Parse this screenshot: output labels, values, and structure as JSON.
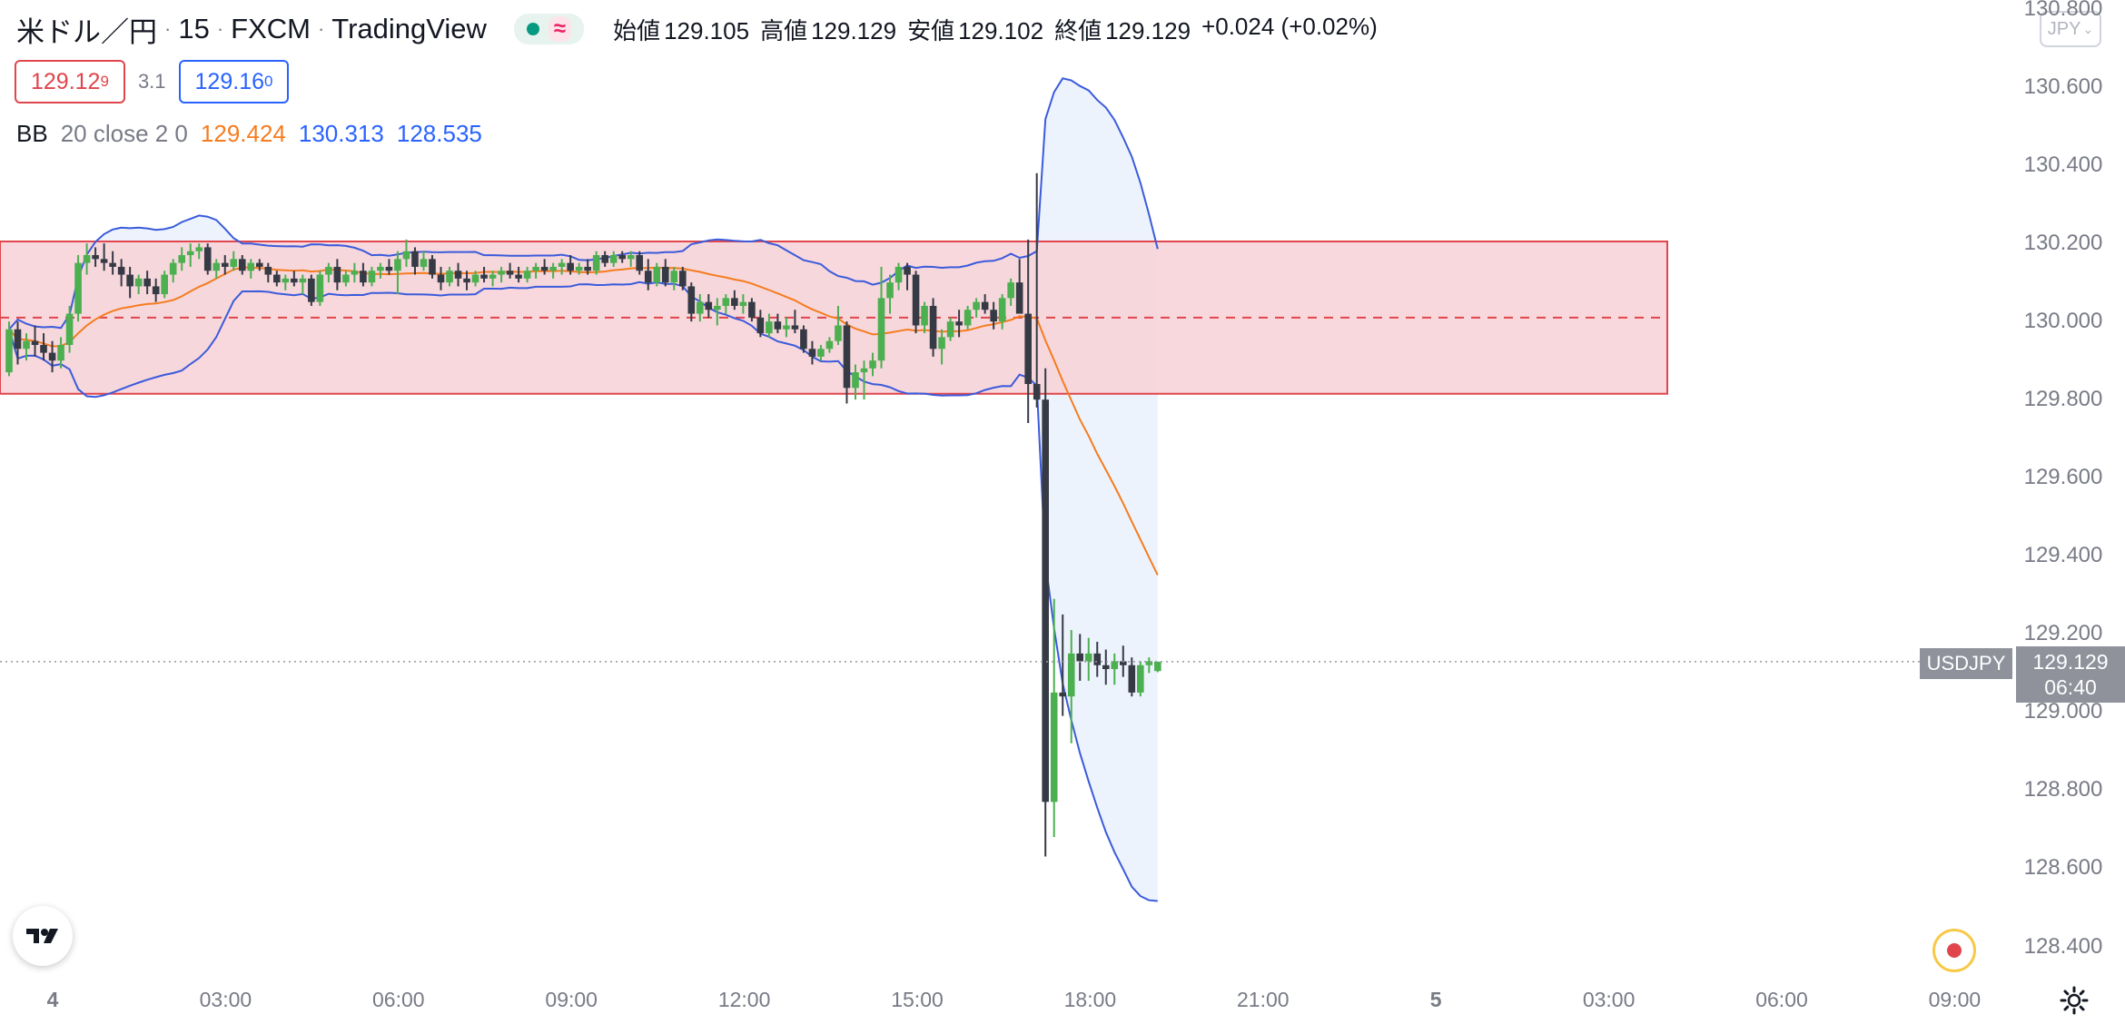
{
  "header": {
    "symbol": "米ドル／円",
    "interval": "15",
    "broker": "FXCM",
    "platform": "TradingView",
    "approx_glyph": "≈",
    "ohlc": {
      "open_label": "始値",
      "open": "129.105",
      "high_label": "高値",
      "high": "129.129",
      "low_label": "安値",
      "low": "129.102",
      "close_label": "終値",
      "close": "129.129",
      "change": "+0.024 (+0.02%)"
    }
  },
  "trade": {
    "sell_main": "129.12",
    "sell_sup": "9",
    "spread": "3.1",
    "buy_main": "129.16",
    "buy_sup": "0"
  },
  "indicator": {
    "label": "BB",
    "params": "20 close 2 0",
    "basis": "129.424",
    "upper": "130.313",
    "lower": "128.535"
  },
  "currency_button": "JPY",
  "price_axis": {
    "labels": [
      "130.800",
      "130.600",
      "130.400",
      "130.200",
      "130.000",
      "129.800",
      "129.600",
      "129.400",
      "129.200",
      "129.000",
      "128.800",
      "128.600",
      "128.400"
    ]
  },
  "time_axis": {
    "labels": [
      {
        "text": "4",
        "bold": true
      },
      {
        "text": "03:00",
        "bold": false
      },
      {
        "text": "06:00",
        "bold": false
      },
      {
        "text": "09:00",
        "bold": false
      },
      {
        "text": "12:00",
        "bold": false
      },
      {
        "text": "15:00",
        "bold": false
      },
      {
        "text": "18:00",
        "bold": false
      },
      {
        "text": "21:00",
        "bold": false
      },
      {
        "text": "5",
        "bold": true
      },
      {
        "text": "03:00",
        "bold": false
      },
      {
        "text": "06:00",
        "bold": false
      },
      {
        "text": "09:00",
        "bold": false
      }
    ]
  },
  "last_price": {
    "symbol": "USDJPY",
    "price": "129.129",
    "countdown": "06:40"
  },
  "colors": {
    "up": "#4caf50",
    "down": "#363a45",
    "band": "#3b5bdb",
    "basis": "#f57c1f",
    "rect_fill": "#f7d1d6",
    "rect_line": "#e0454b",
    "band_fill": "#e8f0fb"
  },
  "chart_data": {
    "type": "candlestick",
    "ylim": [
      128.4,
      130.8
    ],
    "grid": false,
    "rectangle": {
      "top": 130.205,
      "bottom": 129.815,
      "midline": 130.01
    },
    "candles_ohlc": [
      [
        129.87,
        130.0,
        129.86,
        129.98
      ],
      [
        129.98,
        130.0,
        129.89,
        129.93
      ],
      [
        129.93,
        129.97,
        129.9,
        129.95
      ],
      [
        129.95,
        129.99,
        129.91,
        129.94
      ],
      [
        129.94,
        129.97,
        129.9,
        129.92
      ],
      [
        129.92,
        129.95,
        129.87,
        129.9
      ],
      [
        129.9,
        129.96,
        129.88,
        129.94
      ],
      [
        129.94,
        130.04,
        129.92,
        130.02
      ],
      [
        130.02,
        130.17,
        130.0,
        130.15
      ],
      [
        130.15,
        130.2,
        130.12,
        130.17
      ],
      [
        130.17,
        130.19,
        130.14,
        130.16
      ],
      [
        130.16,
        130.2,
        130.13,
        130.15
      ],
      [
        130.15,
        130.18,
        130.12,
        130.14
      ],
      [
        130.14,
        130.16,
        130.09,
        130.12
      ],
      [
        130.12,
        130.14,
        130.06,
        130.09
      ],
      [
        130.09,
        130.12,
        130.07,
        130.11
      ],
      [
        130.11,
        130.13,
        130.07,
        130.09
      ],
      [
        130.09,
        130.11,
        130.05,
        130.07
      ],
      [
        130.07,
        130.13,
        130.06,
        130.12
      ],
      [
        130.12,
        130.16,
        130.1,
        130.15
      ],
      [
        130.15,
        130.19,
        130.13,
        130.17
      ],
      [
        130.17,
        130.2,
        130.14,
        130.18
      ],
      [
        130.18,
        130.2,
        130.16,
        130.19
      ],
      [
        130.19,
        130.2,
        130.12,
        130.13
      ],
      [
        130.13,
        130.16,
        130.11,
        130.15
      ],
      [
        130.15,
        130.17,
        130.12,
        130.14
      ],
      [
        130.14,
        130.18,
        130.13,
        130.16
      ],
      [
        130.16,
        130.17,
        130.12,
        130.13
      ],
      [
        130.13,
        130.16,
        130.11,
        130.15
      ],
      [
        130.15,
        130.16,
        130.13,
        130.14
      ],
      [
        130.14,
        130.15,
        130.1,
        130.12
      ],
      [
        130.12,
        130.13,
        130.09,
        130.1
      ],
      [
        130.1,
        130.12,
        130.08,
        130.11
      ],
      [
        130.11,
        130.13,
        130.09,
        130.1
      ],
      [
        130.1,
        130.12,
        130.07,
        130.11
      ],
      [
        130.11,
        130.12,
        130.04,
        130.05
      ],
      [
        130.05,
        130.13,
        130.04,
        130.12
      ],
      [
        130.12,
        130.15,
        130.1,
        130.14
      ],
      [
        130.14,
        130.16,
        130.08,
        130.1
      ],
      [
        130.1,
        130.13,
        130.09,
        130.12
      ],
      [
        130.12,
        130.15,
        130.1,
        130.13
      ],
      [
        130.13,
        130.15,
        130.09,
        130.1
      ],
      [
        130.1,
        130.14,
        130.09,
        130.13
      ],
      [
        130.13,
        130.15,
        130.11,
        130.14
      ],
      [
        130.14,
        130.16,
        130.12,
        130.13
      ],
      [
        130.13,
        130.18,
        130.07,
        130.16
      ],
      [
        130.16,
        130.21,
        130.14,
        130.18
      ],
      [
        130.18,
        130.19,
        130.12,
        130.14
      ],
      [
        130.14,
        130.18,
        130.13,
        130.16
      ],
      [
        130.16,
        130.17,
        130.11,
        130.12
      ],
      [
        130.12,
        130.14,
        130.08,
        130.1
      ],
      [
        130.1,
        130.14,
        130.09,
        130.13
      ],
      [
        130.13,
        130.15,
        130.09,
        130.11
      ],
      [
        130.11,
        130.13,
        130.08,
        130.1
      ],
      [
        130.1,
        130.13,
        130.09,
        130.12
      ],
      [
        130.12,
        130.14,
        130.1,
        130.11
      ],
      [
        130.11,
        130.13,
        130.09,
        130.12
      ],
      [
        130.12,
        130.14,
        130.1,
        130.13
      ],
      [
        130.13,
        130.15,
        130.11,
        130.12
      ],
      [
        130.12,
        130.14,
        130.1,
        130.11
      ],
      [
        130.11,
        130.14,
        130.1,
        130.13
      ],
      [
        130.13,
        130.15,
        130.11,
        130.14
      ],
      [
        130.14,
        130.16,
        130.12,
        130.13
      ],
      [
        130.13,
        130.15,
        130.11,
        130.14
      ],
      [
        130.14,
        130.16,
        130.12,
        130.15
      ],
      [
        130.15,
        130.17,
        130.12,
        130.13
      ],
      [
        130.13,
        130.15,
        130.12,
        130.14
      ],
      [
        130.14,
        130.16,
        130.12,
        130.13
      ],
      [
        130.13,
        130.18,
        130.12,
        130.17
      ],
      [
        130.17,
        130.18,
        130.14,
        130.15
      ],
      [
        130.15,
        130.18,
        130.14,
        130.17
      ],
      [
        130.17,
        130.18,
        130.15,
        130.16
      ],
      [
        130.16,
        130.18,
        130.14,
        130.17
      ],
      [
        130.17,
        130.18,
        130.12,
        130.13
      ],
      [
        130.13,
        130.16,
        130.08,
        130.1
      ],
      [
        130.1,
        130.15,
        130.09,
        130.14
      ],
      [
        130.14,
        130.16,
        130.09,
        130.1
      ],
      [
        130.1,
        130.14,
        130.08,
        130.13
      ],
      [
        130.13,
        130.14,
        130.08,
        130.09
      ],
      [
        130.09,
        130.1,
        130.0,
        130.02
      ],
      [
        130.02,
        130.07,
        130.0,
        130.05
      ],
      [
        130.05,
        130.07,
        130.01,
        130.03
      ],
      [
        130.03,
        130.06,
        129.99,
        130.04
      ],
      [
        130.04,
        130.07,
        130.02,
        130.06
      ],
      [
        130.06,
        130.08,
        130.03,
        130.04
      ],
      [
        130.04,
        130.07,
        130.02,
        130.05
      ],
      [
        130.05,
        130.06,
        130.0,
        130.01
      ],
      [
        130.01,
        130.03,
        129.96,
        129.97
      ],
      [
        129.97,
        130.02,
        129.96,
        130.0
      ],
      [
        130.0,
        130.02,
        129.97,
        129.98
      ],
      [
        129.98,
        130.01,
        129.96,
        129.99
      ],
      [
        129.99,
        130.03,
        129.97,
        129.98
      ],
      [
        129.98,
        129.99,
        129.92,
        129.93
      ],
      [
        129.93,
        129.95,
        129.89,
        129.91
      ],
      [
        129.91,
        129.94,
        129.9,
        129.93
      ],
      [
        129.93,
        129.96,
        129.92,
        129.95
      ],
      [
        129.95,
        130.04,
        129.94,
        129.99
      ],
      [
        129.99,
        130.0,
        129.79,
        129.83
      ],
      [
        129.83,
        129.89,
        129.8,
        129.87
      ],
      [
        129.87,
        129.9,
        129.8,
        129.88
      ],
      [
        129.88,
        129.92,
        129.86,
        129.9
      ],
      [
        129.9,
        130.14,
        129.88,
        130.06
      ],
      [
        130.06,
        130.12,
        130.02,
        130.1
      ],
      [
        130.1,
        130.15,
        130.08,
        130.14
      ],
      [
        130.14,
        130.15,
        130.08,
        130.12
      ],
      [
        130.12,
        130.13,
        129.97,
        129.99
      ],
      [
        129.99,
        130.05,
        129.97,
        130.04
      ],
      [
        130.04,
        130.06,
        129.91,
        129.93
      ],
      [
        129.93,
        129.98,
        129.89,
        129.96
      ],
      [
        129.96,
        130.01,
        129.95,
        130.0
      ],
      [
        130.0,
        130.03,
        129.96,
        129.99
      ],
      [
        129.99,
        130.04,
        129.98,
        130.03
      ],
      [
        130.03,
        130.06,
        130.01,
        130.05
      ],
      [
        130.05,
        130.07,
        130.02,
        130.03
      ],
      [
        130.03,
        130.05,
        129.98,
        130.0
      ],
      [
        130.0,
        130.07,
        129.98,
        130.06
      ],
      [
        130.06,
        130.11,
        130.04,
        130.1
      ],
      [
        130.1,
        130.16,
        130.05,
        130.02
      ],
      [
        130.02,
        130.21,
        129.74,
        129.84
      ],
      [
        129.84,
        130.38,
        129.78,
        129.8
      ],
      [
        129.8,
        129.88,
        128.63,
        128.77
      ],
      [
        128.77,
        129.29,
        128.68,
        129.05
      ],
      [
        129.05,
        129.25,
        128.99,
        129.04
      ],
      [
        129.04,
        129.21,
        128.92,
        129.15
      ],
      [
        129.15,
        129.2,
        129.08,
        129.13
      ],
      [
        129.13,
        129.19,
        129.08,
        129.15
      ],
      [
        129.15,
        129.18,
        129.09,
        129.12
      ],
      [
        129.12,
        129.16,
        129.07,
        129.11
      ],
      [
        129.11,
        129.15,
        129.07,
        129.13
      ],
      [
        129.13,
        129.17,
        129.09,
        129.12
      ],
      [
        129.12,
        129.14,
        129.04,
        129.05
      ],
      [
        129.05,
        129.13,
        129.04,
        129.12
      ],
      [
        129.12,
        129.14,
        129.1,
        129.13
      ],
      [
        129.105,
        129.129,
        129.102,
        129.129
      ]
    ]
  }
}
